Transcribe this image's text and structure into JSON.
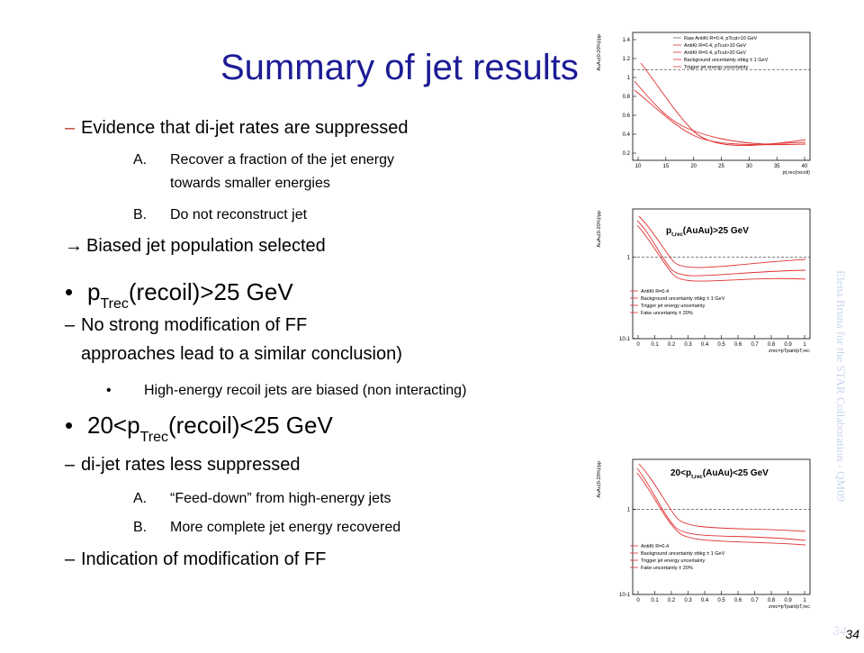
{
  "title": "Summary of jet results",
  "items": [
    {
      "marker": "–",
      "parts": [
        "Evidence that di-jet rates are suppressed"
      ]
    },
    {
      "marker": "A.",
      "parts": [
        "Recover a fraction of the jet energy"
      ]
    },
    {
      "marker": "",
      "parts": [
        "towards smaller energies"
      ]
    },
    {
      "marker": "B.",
      "parts": [
        "Do not reconstruct jet"
      ]
    },
    {
      "marker": "→",
      "parts": [
        "Biased jet population selected"
      ]
    },
    {
      "marker": "•",
      "parts": [
        "p",
        "Trec",
        "(recoil)>25 GeV"
      ]
    },
    {
      "marker": "–",
      "parts": [
        "No strong modification of FF"
      ]
    },
    {
      "marker": "",
      "parts": [
        "approaches lead to  a similar conclusion)"
      ]
    },
    {
      "marker": "•",
      "parts": [
        "High-energy recoil jets are biased (non interacting)"
      ]
    },
    {
      "marker": "•",
      "parts": [
        "20<p",
        "Trec",
        "(recoil)<25 GeV"
      ]
    },
    {
      "marker": "–",
      "parts": [
        "di-jet rates less suppressed"
      ]
    },
    {
      "marker": "A.",
      "parts": [
        "“Feed-down” from high-energy jets"
      ]
    },
    {
      "marker": "B.",
      "parts": [
        "More complete jet energy recovered"
      ]
    },
    {
      "marker": "–",
      "parts": [
        "Indication of modification of FF"
      ]
    }
  ],
  "side_note": "Elena Bruna for the STAR Collaboration - QM09",
  "page_number": "34",
  "plots": [
    {
      "ylabel": "AuAu(0-20%)/pp",
      "xlabel": "pt,rec(recoil)",
      "yticks": [
        "0.2",
        "0.4",
        "0.6",
        "0.8",
        "1",
        "1.2",
        "1.4"
      ],
      "xticks": [
        "10",
        "15",
        "20",
        "25",
        "30",
        "35",
        "40"
      ],
      "legend": [
        "Raw AntiKt R=0.4, pTcut>10 GeV",
        "AntiKt R=0.4, pTcut>10 GeV",
        "AntiKt R=0.4, pTcut>20 GeV",
        "Background uncertainty σbkg ± 1 GeV",
        "Trigger jet energy uncertainty"
      ]
    },
    {
      "label": [
        "p",
        "t,rec",
        "(AuAu)>25 GeV"
      ],
      "ylabel": "AuAu(0-20%)/pp",
      "xlabel": "zrec=pTpart/pT,rec",
      "yticks": [
        "10-1",
        "1"
      ],
      "xticks": [
        "0",
        "0.1",
        "0.2",
        "0.3",
        "0.4",
        "0.5",
        "0.6",
        "0.7",
        "0.8",
        "0.9",
        "1"
      ],
      "legend": [
        "AntiKt R=0.4",
        "Background uncertainty σbkg ± 1 GeV",
        "Trigger jet energy uncertainty",
        "Fake uncertainty ± 20%"
      ]
    },
    {
      "label": [
        "20<p",
        "t,rec",
        "(AuAu)<25 GeV"
      ],
      "ylabel": "AuAu(0-20%)/pp",
      "xlabel": "zrec=pTpart/pT,rec",
      "yticks": [
        "10-1",
        "1"
      ],
      "xticks": [
        "0",
        "0.1",
        "0.2",
        "0.3",
        "0.4",
        "0.5",
        "0.6",
        "0.7",
        "0.8",
        "0.9",
        "1"
      ],
      "legend": [
        "AntiKt R=0.4",
        "Background uncertainty σbkg ± 1 GeV",
        "Trigger jet energy uncertainty",
        "Fake uncertainty ± 20%"
      ]
    }
  ]
}
